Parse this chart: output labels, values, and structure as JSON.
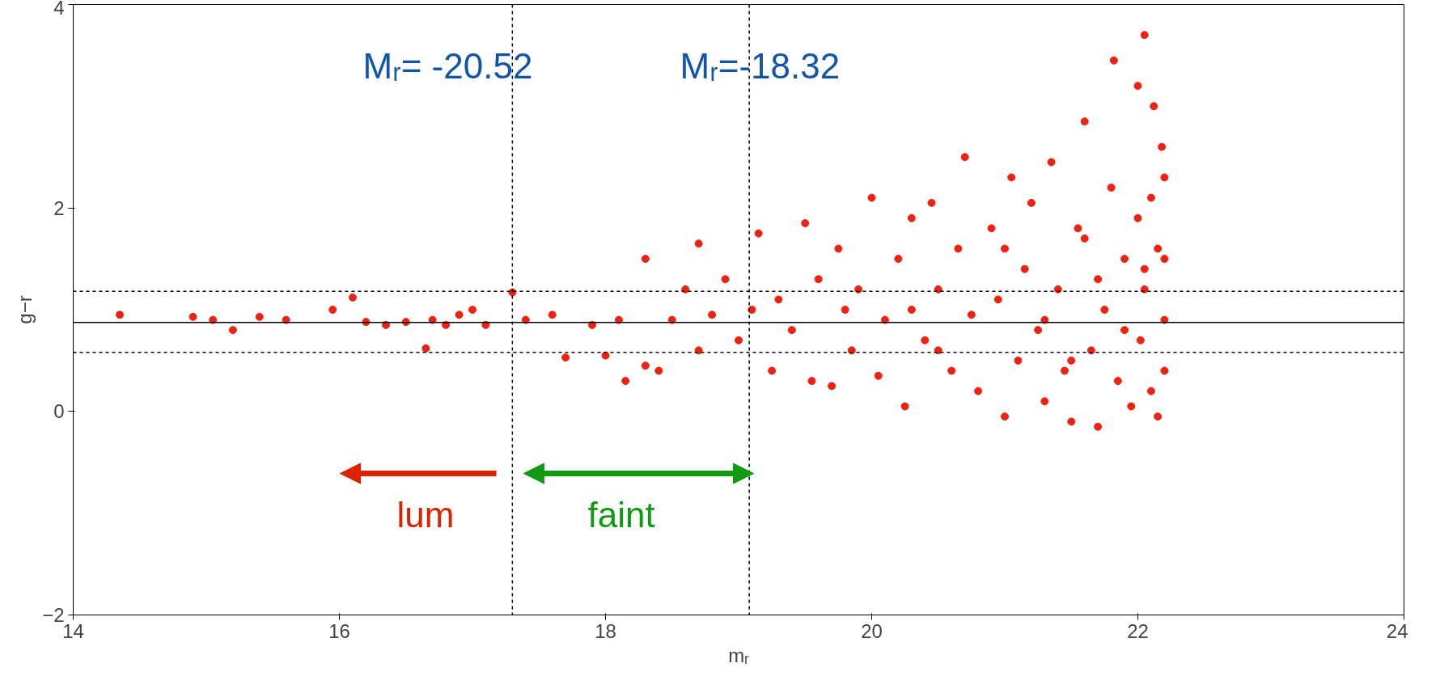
{
  "chart_data": {
    "type": "scatter",
    "xlabel": "mᵣ",
    "ylabel": "g−r",
    "marker": "circle",
    "grid": false,
    "xlim": [
      14,
      24
    ],
    "ylim": [
      -2,
      4
    ],
    "xticks": [
      14,
      16,
      18,
      20,
      22,
      24
    ],
    "yticks": [
      -2,
      0,
      2,
      4
    ],
    "series": [
      {
        "color": "#ee2211",
        "x": [
          14.35,
          14.9,
          15.05,
          15.2,
          15.4,
          15.6,
          15.95,
          16.1,
          16.2,
          16.35,
          16.5,
          16.65,
          16.7,
          16.8,
          16.9,
          17.0,
          17.1,
          17.3,
          17.4,
          17.6,
          17.7,
          17.9,
          18.0,
          18.1,
          18.15,
          18.3,
          18.3,
          18.4,
          18.5,
          18.6,
          18.7,
          18.7,
          18.8,
          18.9,
          19.0,
          19.1,
          19.15,
          19.25,
          19.3,
          19.4,
          19.5,
          19.55,
          19.6,
          19.7,
          19.75,
          19.85,
          19.9,
          20.0,
          20.05,
          20.1,
          20.2,
          20.25,
          20.3,
          20.4,
          20.45,
          20.5,
          20.6,
          20.65,
          20.7,
          20.75,
          20.8,
          20.9,
          20.95,
          21.0,
          21.05,
          21.1,
          21.15,
          21.2,
          21.25,
          21.3,
          21.35,
          21.4,
          21.45,
          21.5,
          21.55,
          21.6,
          21.65,
          21.7,
          21.75,
          21.8,
          21.82,
          21.85,
          21.9,
          21.95,
          22.0,
          22.0,
          22.02,
          22.05,
          22.05,
          22.1,
          22.1,
          22.12,
          22.15,
          22.15,
          22.18,
          22.2,
          22.2,
          22.2,
          22.2,
          21.3,
          21.5,
          21.7,
          21.9,
          20.5,
          19.8,
          20.3,
          21.0,
          21.6,
          22.05
        ],
        "values": [
          0.95,
          0.93,
          0.9,
          0.8,
          0.93,
          0.9,
          1.0,
          1.12,
          0.88,
          0.85,
          0.88,
          0.62,
          0.9,
          0.85,
          0.95,
          1.0,
          0.85,
          1.17,
          0.9,
          0.95,
          0.53,
          0.85,
          0.55,
          0.9,
          0.3,
          1.5,
          0.45,
          0.4,
          0.9,
          1.2,
          1.65,
          0.6,
          0.95,
          1.3,
          0.7,
          1.0,
          1.75,
          0.4,
          1.1,
          0.8,
          1.85,
          0.3,
          1.3,
          0.25,
          1.6,
          0.6,
          1.2,
          2.1,
          0.35,
          0.9,
          1.5,
          0.05,
          1.9,
          0.7,
          2.05,
          1.2,
          0.4,
          1.6,
          2.5,
          0.95,
          0.2,
          1.8,
          1.1,
          -0.05,
          2.3,
          0.5,
          1.4,
          2.05,
          0.8,
          0.1,
          2.45,
          1.2,
          0.4,
          -0.1,
          1.8,
          2.85,
          0.6,
          -0.15,
          1.0,
          2.2,
          3.45,
          0.3,
          1.5,
          0.05,
          3.2,
          1.9,
          0.7,
          3.7,
          1.2,
          2.1,
          0.2,
          3.0,
          1.6,
          -0.05,
          2.6,
          0.9,
          2.3,
          0.4,
          1.5,
          0.9,
          0.5,
          1.3,
          0.8,
          0.6,
          1.0,
          1.0,
          1.6,
          1.7,
          1.4
        ]
      }
    ],
    "ref_lines": [
      {
        "axis": "x",
        "value": 17.3,
        "line_style": "dashed",
        "color": "#000000"
      },
      {
        "axis": "x",
        "value": 19.08,
        "line_style": "dashed",
        "color": "#000000"
      },
      {
        "axis": "y",
        "value": 0.875,
        "line_style": "solid",
        "color": "#000000"
      },
      {
        "axis": "y",
        "value": 1.18,
        "line_style": "dashed",
        "color": "#000000"
      },
      {
        "axis": "y",
        "value": 0.58,
        "line_style": "dashed",
        "color": "#000000"
      }
    ],
    "annotations": [
      "Mᵣ= -20.52",
      "Mᵣ=-18.32",
      "lum",
      "faint"
    ]
  }
}
